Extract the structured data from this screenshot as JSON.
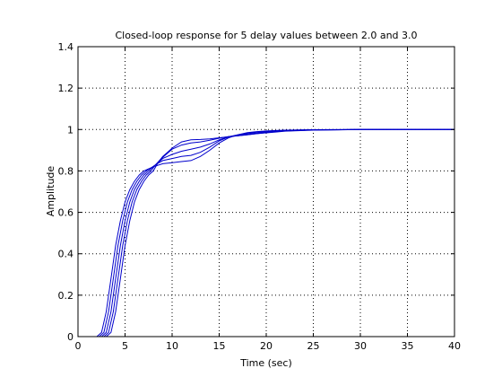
{
  "chart_data": {
    "type": "line",
    "title": "Closed-loop response for 5 delay values between 2.0 and 3.0",
    "xlabel": "Time (sec)",
    "ylabel": "Amplitude",
    "xlim": [
      0,
      40
    ],
    "ylim": [
      0,
      1.4
    ],
    "xticks": [
      0,
      5,
      10,
      15,
      20,
      25,
      30,
      35,
      40
    ],
    "yticks": [
      0,
      0.2,
      0.4,
      0.6,
      0.8,
      1.0,
      1.2,
      1.4
    ],
    "xtick_labels": [
      "0",
      "5",
      "10",
      "15",
      "20",
      "25",
      "30",
      "35",
      "40"
    ],
    "ytick_labels": [
      "0",
      "0.2",
      "0.4",
      "0.6",
      "0.8",
      "1",
      "1.2",
      "1.4"
    ],
    "grid": true,
    "line_color": "#0000cc",
    "series": [
      {
        "x": [
          0,
          2.0,
          2.5,
          3,
          3.5,
          4,
          4.5,
          5,
          5.5,
          6,
          6.5,
          7,
          7.5,
          8,
          9,
          10,
          11,
          12,
          13,
          14,
          15,
          16,
          17,
          18,
          19,
          20,
          21,
          22,
          25,
          30,
          35,
          40
        ],
        "y": [
          0,
          0,
          0.02,
          0.12,
          0.28,
          0.44,
          0.56,
          0.65,
          0.71,
          0.75,
          0.78,
          0.8,
          0.81,
          0.82,
          0.835,
          0.84,
          0.845,
          0.85,
          0.87,
          0.9,
          0.935,
          0.96,
          0.975,
          0.985,
          0.99,
          0.993,
          0.995,
          0.997,
          0.999,
          1.0,
          1.0,
          1.0
        ]
      },
      {
        "x": [
          0,
          2.25,
          2.75,
          3.25,
          3.75,
          4.25,
          4.75,
          5.25,
          5.75,
          6.25,
          6.75,
          7.25,
          7.75,
          8.25,
          9,
          10,
          11,
          12,
          13,
          14,
          15,
          16,
          17,
          18,
          19,
          20,
          21,
          22,
          25,
          30,
          35,
          40
        ],
        "y": [
          0,
          0,
          0.02,
          0.12,
          0.28,
          0.44,
          0.56,
          0.65,
          0.71,
          0.75,
          0.78,
          0.8,
          0.815,
          0.83,
          0.85,
          0.86,
          0.87,
          0.875,
          0.89,
          0.915,
          0.945,
          0.965,
          0.975,
          0.982,
          0.987,
          0.99,
          0.993,
          0.996,
          0.999,
          1.0,
          1.0,
          1.0
        ]
      },
      {
        "x": [
          0,
          2.5,
          3,
          3.5,
          4,
          4.5,
          5,
          5.5,
          6,
          6.5,
          7,
          7.5,
          8,
          8.5,
          9,
          10,
          11,
          12,
          13,
          14,
          15,
          16,
          17,
          18,
          19,
          20,
          21,
          22,
          25,
          30,
          35,
          40
        ],
        "y": [
          0,
          0,
          0.02,
          0.12,
          0.28,
          0.44,
          0.56,
          0.65,
          0.71,
          0.75,
          0.78,
          0.8,
          0.82,
          0.84,
          0.86,
          0.88,
          0.895,
          0.905,
          0.915,
          0.93,
          0.95,
          0.965,
          0.972,
          0.978,
          0.983,
          0.987,
          0.99,
          0.994,
          0.998,
          1.0,
          1.0,
          1.0
        ]
      },
      {
        "x": [
          0,
          2.75,
          3.25,
          3.75,
          4.25,
          4.75,
          5.25,
          5.75,
          6.25,
          6.75,
          7.25,
          7.75,
          8.25,
          8.75,
          9.25,
          10,
          11,
          12,
          13,
          14,
          15,
          16,
          17,
          18,
          19,
          20,
          21,
          22,
          25,
          30,
          35,
          40
        ],
        "y": [
          0,
          0,
          0.02,
          0.12,
          0.28,
          0.44,
          0.56,
          0.65,
          0.71,
          0.75,
          0.78,
          0.8,
          0.83,
          0.855,
          0.875,
          0.905,
          0.925,
          0.935,
          0.94,
          0.948,
          0.958,
          0.966,
          0.97,
          0.975,
          0.98,
          0.985,
          0.989,
          0.993,
          0.998,
          1.0,
          1.0,
          1.0
        ]
      },
      {
        "x": [
          0,
          3.0,
          3.5,
          4,
          4.5,
          5,
          5.5,
          6,
          6.5,
          7,
          7.5,
          8,
          8.5,
          9,
          9.5,
          10,
          11,
          12,
          13,
          14,
          15,
          16,
          17,
          18,
          19,
          20,
          21,
          22,
          25,
          30,
          35,
          40
        ],
        "y": [
          0,
          0,
          0.02,
          0.12,
          0.28,
          0.44,
          0.56,
          0.65,
          0.71,
          0.75,
          0.78,
          0.8,
          0.84,
          0.87,
          0.89,
          0.91,
          0.94,
          0.95,
          0.952,
          0.955,
          0.96,
          0.965,
          0.97,
          0.975,
          0.98,
          0.984,
          0.988,
          0.992,
          0.997,
          1.0,
          1.0,
          1.0
        ]
      }
    ]
  }
}
